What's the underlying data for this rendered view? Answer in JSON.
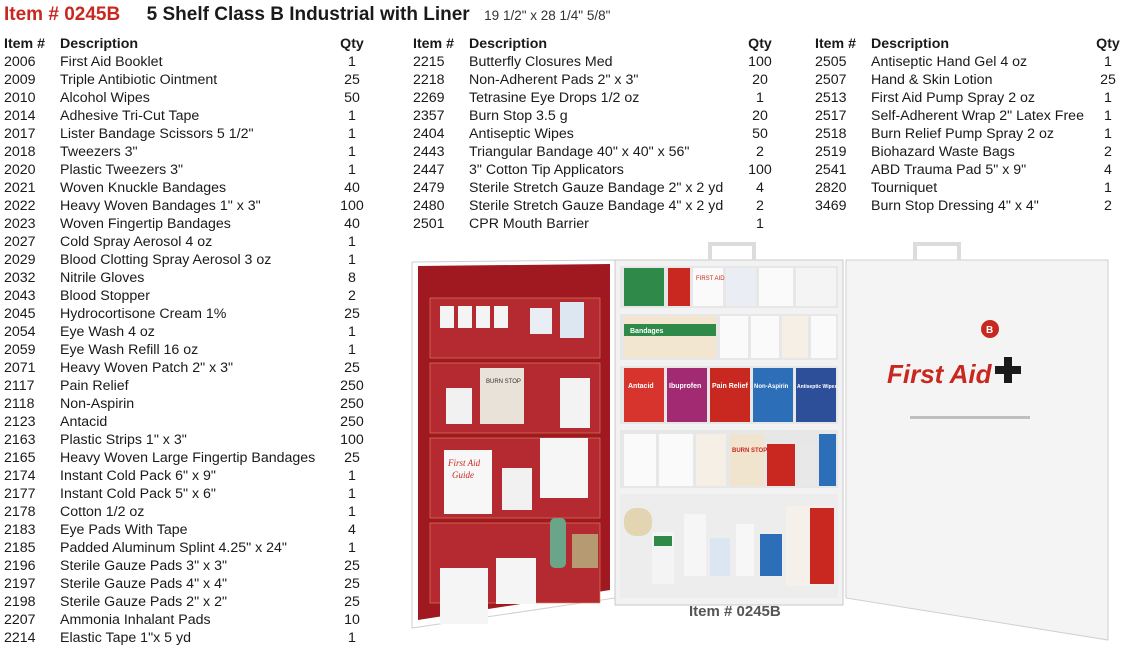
{
  "header": {
    "item_number": "Item # 0245B",
    "title": "5 Shelf Class B Industrial with Liner",
    "dimensions": "19 1/2\" x 28 1/4\" 5/8\""
  },
  "columns_header": {
    "item": "Item #",
    "description": "Description",
    "qty": "Qty"
  },
  "table1": [
    {
      "item": "2006",
      "desc": "First Aid Booklet",
      "qty": "1"
    },
    {
      "item": "2009",
      "desc": "Triple Antibiotic Ointment",
      "qty": "25"
    },
    {
      "item": "2010",
      "desc": "Alcohol Wipes",
      "qty": "50"
    },
    {
      "item": "2014",
      "desc": "Adhesive Tri-Cut Tape",
      "qty": "1"
    },
    {
      "item": "2017",
      "desc": "Lister Bandage Scissors 5 1/2\"",
      "qty": "1"
    },
    {
      "item": "2018",
      "desc": "Tweezers 3\"",
      "qty": "1"
    },
    {
      "item": "2020",
      "desc": "Plastic Tweezers 3\"",
      "qty": "1"
    },
    {
      "item": "2021",
      "desc": "Woven Knuckle Bandages",
      "qty": "40"
    },
    {
      "item": "2022",
      "desc": "Heavy Woven Bandages 1\" x 3\"",
      "qty": "100"
    },
    {
      "item": "2023",
      "desc": "Woven Fingertip Bandages",
      "qty": "40"
    },
    {
      "item": "2027",
      "desc": "Cold Spray Aerosol 4 oz",
      "qty": "1"
    },
    {
      "item": "2029",
      "desc": "Blood Clotting Spray Aerosol 3 oz",
      "qty": "1"
    },
    {
      "item": "2032",
      "desc": "Nitrile Gloves",
      "qty": "8"
    },
    {
      "item": "2043",
      "desc": "Blood Stopper",
      "qty": "2"
    },
    {
      "item": "2045",
      "desc": "Hydrocortisone Cream 1%",
      "qty": "25"
    },
    {
      "item": "2054",
      "desc": "Eye Wash 4 oz",
      "qty": "1"
    },
    {
      "item": "2059",
      "desc": "Eye Wash Refill 16 oz",
      "qty": "1"
    },
    {
      "item": "2071",
      "desc": "Heavy Woven Patch 2\" x 3\"",
      "qty": "25"
    },
    {
      "item": "2117",
      "desc": "Pain Relief",
      "qty": "250"
    },
    {
      "item": "2118",
      "desc": "Non-Aspirin",
      "qty": "250"
    },
    {
      "item": "2123",
      "desc": "Antacid",
      "qty": "250"
    },
    {
      "item": "2163",
      "desc": "Plastic Strips 1\" x 3\"",
      "qty": "100"
    },
    {
      "item": "2165",
      "desc": "Heavy Woven Large Fingertip Bandages",
      "qty": "25"
    },
    {
      "item": "2174",
      "desc": "Instant Cold Pack 6\" x 9\"",
      "qty": "1"
    },
    {
      "item": "2177",
      "desc": "Instant Cold Pack 5\" x 6\"",
      "qty": "1"
    },
    {
      "item": "2178",
      "desc": "Cotton 1/2 oz",
      "qty": "1"
    },
    {
      "item": "2183",
      "desc": "Eye Pads With Tape",
      "qty": "4"
    },
    {
      "item": "2185",
      "desc": "Padded Aluminum Splint 4.25\" x 24\"",
      "qty": "1"
    },
    {
      "item": "2196",
      "desc": "Sterile Gauze Pads 3\" x 3\"",
      "qty": "25"
    },
    {
      "item": "2197",
      "desc": "Sterile Gauze Pads 4\" x 4\"",
      "qty": "25"
    },
    {
      "item": "2198",
      "desc": "Sterile Gauze Pads 2\" x 2\"",
      "qty": "25"
    },
    {
      "item": "2207",
      "desc": "Ammonia Inhalant Pads",
      "qty": "10"
    },
    {
      "item": "2214",
      "desc": "Elastic Tape 1\"x 5 yd",
      "qty": "1"
    }
  ],
  "table2": [
    {
      "item": "2215",
      "desc": "Butterfly Closures Med",
      "qty": "100"
    },
    {
      "item": "2218",
      "desc": "Non-Adherent Pads 2\" x 3\"",
      "qty": "20"
    },
    {
      "item": "2269",
      "desc": "Tetrasine Eye Drops 1/2 oz",
      "qty": "1"
    },
    {
      "item": "2357",
      "desc": "Burn Stop 3.5 g",
      "qty": "20"
    },
    {
      "item": "2404",
      "desc": "Antiseptic Wipes",
      "qty": "50"
    },
    {
      "item": "2443",
      "desc": "Triangular Bandage 40\" x 40\" x 56\"",
      "qty": "2"
    },
    {
      "item": "2447",
      "desc": "3\" Cotton Tip Applicators",
      "qty": "100"
    },
    {
      "item": "2479",
      "desc": "Sterile Stretch Gauze Bandage 2\" x 2 yd",
      "qty": "4"
    },
    {
      "item": "2480",
      "desc": "Sterile Stretch Gauze Bandage 4\" x 2 yd",
      "qty": "2"
    },
    {
      "item": "2501",
      "desc": "CPR Mouth Barrier",
      "qty": "1"
    }
  ],
  "table3": [
    {
      "item": "2505",
      "desc": "Antiseptic Hand Gel 4 oz",
      "qty": "1"
    },
    {
      "item": "2507",
      "desc": "Hand & Skin Lotion",
      "qty": "25"
    },
    {
      "item": "2513",
      "desc": "First Aid Pump Spray 2 oz",
      "qty": "1"
    },
    {
      "item": "2517",
      "desc": "Self-Adherent Wrap 2\" Latex Free",
      "qty": "1"
    },
    {
      "item": "2518",
      "desc": "Burn Relief Pump Spray 2 oz",
      "qty": "1"
    },
    {
      "item": "2519",
      "desc": "Biohazard Waste Bags",
      "qty": "2"
    },
    {
      "item": "2541",
      "desc": "ABD Trauma Pad 5\" x 9\"",
      "qty": "4"
    },
    {
      "item": "2820",
      "desc": "Tourniquet",
      "qty": "1"
    },
    {
      "item": "3469",
      "desc": "Burn Stop Dressing 4\" x 4\"",
      "qty": "2"
    }
  ],
  "photo": {
    "caption": "Item # 0245B",
    "door_label": "First Aid",
    "class_badge": "B",
    "guide_label_1": "First Aid",
    "guide_label_2": "Guide",
    "burn_stop_label": "BURN STOP",
    "box_labels": [
      "Bandages",
      "Antacid",
      "Ibuprofen",
      "Pain Relief",
      "Non-Aspirin",
      "Antiseptic Wipes",
      "FIRST AID",
      "BURN STOP"
    ]
  },
  "colors": {
    "brand_red": "#c8281f",
    "door_liner_red": "#a01820",
    "cabinet_white": "#f2f2f2"
  }
}
